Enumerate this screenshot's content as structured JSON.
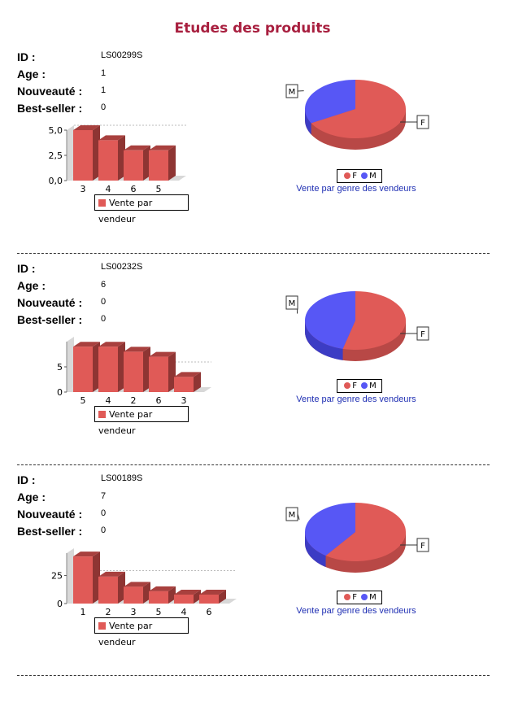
{
  "page": {
    "title": "Etudes des produits"
  },
  "labels": {
    "id": "ID :",
    "age": "Age :",
    "novelty": "Nouveauté :",
    "bestseller": "Best-seller :"
  },
  "colors": {
    "female": "#e05a57",
    "male": "#5757f5",
    "title": "#a81f3f",
    "caption": "#1f2fb3"
  },
  "products": [
    {
      "id": "LS00299S",
      "age": "1",
      "novelty": "1",
      "bestseller": "0",
      "bar_legend": "Vente par vendeur",
      "pie_legend": {
        "f": "F",
        "m": "M"
      },
      "pie_caption": "Vente par genre des vendeurs",
      "pie_labels": {
        "m": "M",
        "f": "F"
      }
    },
    {
      "id": "LS00232S",
      "age": "6",
      "novelty": "0",
      "bestseller": "0",
      "bar_legend": "Vente par vendeur",
      "pie_legend": {
        "f": "F",
        "m": "M"
      },
      "pie_caption": "Vente par genre des vendeurs",
      "pie_labels": {
        "m": "M",
        "f": "F"
      }
    },
    {
      "id": "LS00189S",
      "age": "7",
      "novelty": "0",
      "bestseller": "0",
      "bar_legend": "Vente par vendeur",
      "pie_legend": {
        "f": "F",
        "m": "M"
      },
      "pie_caption": "Vente par genre des vendeurs",
      "pie_labels": {
        "m": "M",
        "f": "F"
      }
    }
  ],
  "chart_data": [
    {
      "type": "bar",
      "series": [
        {
          "name": "Vente par vendeur",
          "values": [
            5,
            4,
            3,
            3
          ]
        }
      ],
      "categories": [
        "3",
        "4",
        "6",
        "5"
      ],
      "yticks": [
        "0,0",
        "2,5",
        "5,0"
      ],
      "ylim": [
        0,
        5
      ]
    },
    {
      "type": "pie",
      "title": "Vente par genre des vendeurs",
      "labels": [
        "F",
        "M"
      ],
      "values": [
        0.67,
        0.33
      ]
    },
    {
      "type": "bar",
      "series": [
        {
          "name": "Vente par vendeur",
          "values": [
            9,
            9,
            8,
            7,
            3
          ]
        }
      ],
      "categories": [
        "5",
        "4",
        "2",
        "6",
        "3"
      ],
      "yticks": [
        "0",
        "5"
      ],
      "ylim": [
        0,
        10
      ]
    },
    {
      "type": "pie",
      "title": "Vente par genre des vendeurs",
      "labels": [
        "F",
        "M"
      ],
      "values": [
        0.54,
        0.46
      ]
    },
    {
      "type": "bar",
      "series": [
        {
          "name": "Vente par vendeur",
          "values": [
            42,
            24,
            15,
            11,
            8,
            8
          ]
        }
      ],
      "categories": [
        "1",
        "2",
        "3",
        "5",
        "4",
        "6"
      ],
      "yticks": [
        "0",
        "25"
      ],
      "ylim": [
        0,
        45
      ]
    },
    {
      "type": "pie",
      "title": "Vente par genre des vendeurs",
      "labels": [
        "F",
        "M"
      ],
      "values": [
        0.6,
        0.4
      ]
    }
  ]
}
